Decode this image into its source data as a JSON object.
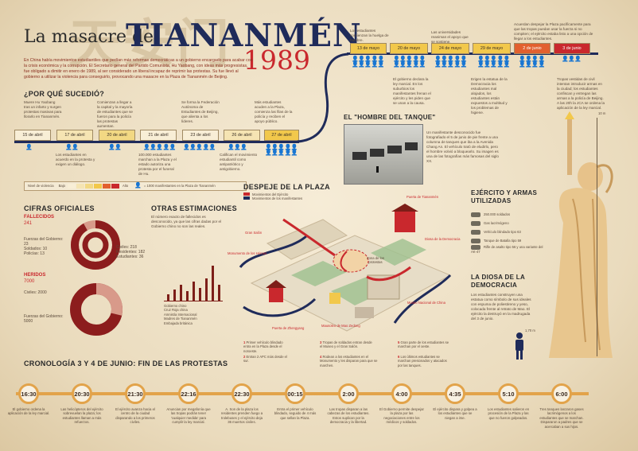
{
  "header": {
    "bg_chars": "天安门",
    "prefix": "La masacre de",
    "title": "TIANANMÉN",
    "year": "1989",
    "intro": "En China había movimientos estudiantiles que pedían más reformas democráticas a un gobierno encargado para acabar con la crisis económica y la corrupción. El Secretario general del Partido Comunista, Hu Yaobang, con ideas más progresistas, fue obligado a dimitir en enero de 1989, al ser considerado un liberal incapaz de reprimir las protestas. Su fue llevó al gobierno a utilizar la violencia para conseguirlo, provocando una masacre en la Plaza de Tiananmén de Beijing."
  },
  "why": {
    "heading": "¿POR QUÉ SUCEDIÓ?",
    "notes_top": [
      "Muere Hu Yaobang tras un infarto y surgen protestas masivas para llorarlo en Tiananmén.",
      "Comienzan a llegar a la capital y la mayoría de estudiantes que se fueron para la policía las protestas aumentan.",
      "Se forma la Federación Autónoma de Estudiantes de Beijing, que alienta a los líderes.",
      "Más estudiantes acuden a la Plaza, comienza las filas de la policía y reciben el apoyo público."
    ],
    "notes_bottom": [
      "Los estudiantes en acuerdo en la protesta y exigen un diálogo.",
      "100.000 estudiantes marchan a la Plaza y el estado autoriza una protesta por el funeral de Hu.",
      "Califican el movimiento estudiantil como antipatriótico y antigobierno.",
      "Comienza el estado y presionan para que levanten la huelga."
    ],
    "dates": [
      "15 de abril",
      "17 de abril",
      "20 de abril",
      "21 de abril",
      "23 de abril",
      "26 de abril",
      "27 de abril"
    ],
    "dates_top": [
      "13 de mayo",
      "20 de mayo",
      "24 de mayo",
      "29 de mayo",
      "2 de junio",
      "3 de junio"
    ],
    "notes_upper": [
      "Los estudiantes comienzan la huelga de hambre.",
      "Se establece la ley marcial, el ejército solo ignora a la ciudad.",
      "Las universidades reaniman el apoyo que se sostiene.",
      "Acuerdan despejar la Plaza pacíficamente para que las tropas puedan usar la fuerza si no compiten; el ejército estaba listo a una opción de llegar a los estudiantes."
    ],
    "notes_lower": [
      "El gobierno declara la ley marcial. En los suburbios los manifestantes frenan el ejército y les piden que se unan a la causa.",
      "Erigen la estatua de la Democracia los estudiantes mal alojados, los estudiantes están expuestos a multitud y los problemas de higiene.",
      "Tropas vestidas de civil intentan introducir armas en la ciudad; los estudiantes confiscan y entregan las armas a la policía de Beijing. A las 20h la JCA se ordena la aplicación de la ley marcial."
    ],
    "legend_label": "Nivel de violencia",
    "legend_low": "Bajo",
    "legend_high": "Alto",
    "legend_people": "= 1000 manifestantes en la Plaza de Tiananmén"
  },
  "cifras": {
    "heading": "CIFRAS OFICIALES",
    "fallecidos_label": "FALLECIDOS",
    "fallecidos_value": "241",
    "fallecidos_breakdown": [
      "Fuerzas del Gobierno: 23",
      "Soldados: 10",
      "Policías: 13"
    ],
    "civiles": "Civiles: 218",
    "residentes": "Residentes: 182",
    "estudiantes": "Estudiantes: 36",
    "heridos_label": "HERIDOS",
    "heridos_value": "7000",
    "heridos_civiles": "Civiles: 2000",
    "heridos_gobierno": "Fuerzas del Gobierno: 5000"
  },
  "otras": {
    "heading": "OTRAS ESTIMACIONES",
    "text": "El número exacto de fallecidos es desconocido, ya que las cifras dadas por el Gobierno chino no son las reales.",
    "chart_labels": [
      "Gobierno chino",
      "Cruz Roja china",
      "Amnistía Internacional",
      "Madres de Tiananmén",
      "Embajada británica"
    ]
  },
  "tanque": {
    "heading": "EL \"HOMBRE DEL TANQUE\"",
    "text": "Un manifestante desconocido fue fotografiado el 5 de junio de pie frente a una columna de tanques que iba a la Avenida Chang An. El vehículo trató de eludirlo, pero el hombre volvió a bloquearlo. Su imagen es una de las fotografías más famosas del siglo XX."
  },
  "plaza": {
    "heading": "DESPEJE DE LA PLAZA",
    "legend_ejercito": "Movimientos del Ejército",
    "legend_manif": "Movimientos de los manifestantes",
    "labels": {
      "puerta": "Puerta de Tiananmén",
      "gran_salon": "Gran Salón",
      "diosa": "Diosa de la Democracia",
      "monumento": "Monumento de los Héroes",
      "zona": "Zona de los protestas",
      "museo": "Museo Nacional de China",
      "mausoleo": "Mausoleo de Mao Zedong",
      "zhengyang": "Puerta de Zhengyang"
    },
    "steps": [
      "Primer vehículo blindado entra en la Plaza desde el noroeste.",
      "Entran 2 APC más desde el sur.",
      "Tropas de soldados entran desde el Museo y el Gran Salón.",
      "Rodean a los estudiantes en el Monumento y les disparan para que se marchen.",
      "Gran parte de los estudiantes se marchan por el oeste.",
      "Los últimos estudiantes se marchan presionados y atacados por las tanques."
    ]
  },
  "ejercito": {
    "heading": "EJÉRCITO Y ARMAS UTILIZADAS",
    "items": [
      "250.000 soldados",
      "Gas lacrimógeno",
      "Vehículo blindado tipo 63",
      "Tanque de Batalla tipo 59",
      "Rifle de asalto tipo 56 y una variante del AK-47"
    ]
  },
  "diosa": {
    "heading": "LA DIOSA DE LA DEMOCRACIA",
    "text": "Los estudiantes construyen una estatua como símbolo de sus ideales con espuma de poliestireno y yeso, colocada frente al retrato de Mao. El ejército la destruyó en la madrugada del 3 de junio.",
    "height_top": "10 m",
    "height_person": "1,70 m"
  },
  "cronologia": {
    "heading": "CRONOLOGÍA 3 Y 4 DE JUNIO: FIN DE LAS PROTESTAS",
    "events": [
      {
        "time": "16:30",
        "text": "El gobierno ordena la aplicación de la ley marcial."
      },
      {
        "time": "20:30",
        "text": "Las helicópteros del ejército sobrevuelan la plaza; los estudiantes llaman a más refuerzos."
      },
      {
        "time": "21:30",
        "text": "El ejército avanza hacia el centro de la ciudad disparando a los primeros civiles."
      },
      {
        "time": "22:16",
        "text": "Anuncian por megafonía que las tropas podrán tener 'cualquier medida' para cumplir la ley marcial."
      },
      {
        "time": "22:30",
        "text": "A. Son de la plaza los residentes prenden fuego a trolebuses y el ejército deja 36 muertos civiles."
      },
      {
        "time": "00:15",
        "text": "Entra el primer vehículo blindado, seguido de 4 más que sellan la Plaza."
      },
      {
        "time": "2:00",
        "text": "Las tropas disparan a las cabezas de los estudiantes. Estos suplican por la democracia y la libertad."
      },
      {
        "time": "4:00",
        "text": "El Gobierno permite despejar la plaza por las negociaciones entre los médicos y soldados."
      },
      {
        "time": "4:35",
        "text": "El ejército dispara y golpea a los estudiantes que se niegan a irse."
      },
      {
        "time": "5:10",
        "text": "Los estudiantes salieron en procesión de la Plaza y las que no fueron golpeados."
      },
      {
        "time": "6:00",
        "text": "Tres tanques lanzaron gases lacrimógenos a los estudiantes que se marchan. Dispararon a padres que se acercaban a sus hijos."
      }
    ]
  },
  "colors": {
    "accent_red": "#c9282d",
    "accent_navy": "#1f2b5a",
    "accent_yellow": "#f2c84b",
    "accent_orange": "#e2a34a",
    "dark_red": "#7d1e18"
  }
}
